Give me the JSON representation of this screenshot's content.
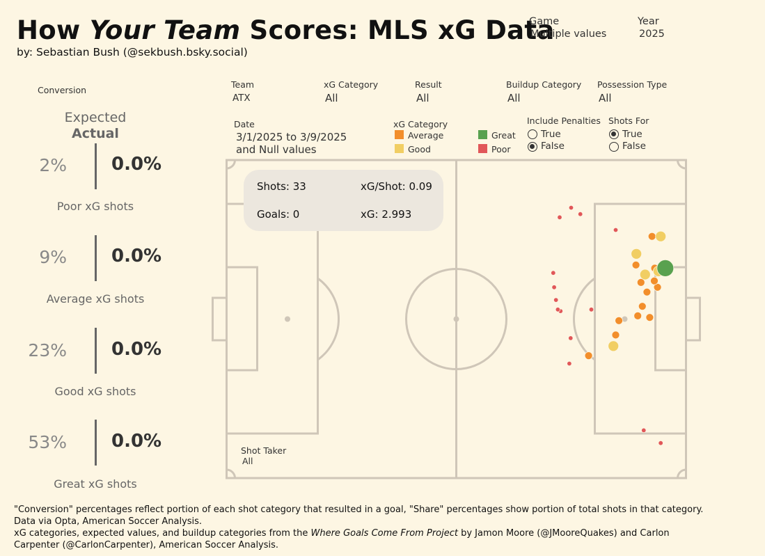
{
  "title": {
    "part1": "How ",
    "part2": "Your Team",
    "part3": "  Scores: MLS xG Data"
  },
  "byline": "by: Sebastian Bush (@sekbush.bsky.social)",
  "top_controls": {
    "game": {
      "label": "Game",
      "value": "Multiple values"
    },
    "year": {
      "label": "Year",
      "value": "2025"
    }
  },
  "left_panel": {
    "conversion_label": "Conversion",
    "expected_label": "Expected",
    "actual_label": "Actual",
    "stats": [
      {
        "expected": "2%",
        "actual": "0.0%",
        "caption": "Poor xG shots"
      },
      {
        "expected": "9%",
        "actual": "0.0%",
        "caption": "Average xG shots"
      },
      {
        "expected": "23%",
        "actual": "0.0%",
        "caption": "Good xG shots"
      },
      {
        "expected": "53%",
        "actual": "0.0%",
        "caption": "Great xG shots"
      }
    ]
  },
  "filters": {
    "team": {
      "label": "Team",
      "value": "ATX"
    },
    "xg_category": {
      "label": "xG Category",
      "value": "All"
    },
    "result": {
      "label": "Result",
      "value": "All"
    },
    "buildup": {
      "label": "Buildup Category",
      "value": "All"
    },
    "possession": {
      "label": "Possession Type",
      "value": "All"
    },
    "date": {
      "label": "Date",
      "line1": "3/1/2025 to 3/9/2025",
      "line2": "and Null values"
    },
    "shot_taker": {
      "label": "Shot Taker",
      "value": "All"
    }
  },
  "legend": {
    "title": "xG Category",
    "items": [
      {
        "name": "Average",
        "color": "#f28e2b"
      },
      {
        "name": "Great",
        "color": "#59a14f"
      },
      {
        "name": "Good",
        "color": "#f1ce63"
      },
      {
        "name": "Poor",
        "color": "#e15759"
      }
    ]
  },
  "include_penalties": {
    "label": "Include Penalties",
    "options": [
      {
        "name": "True",
        "selected": false
      },
      {
        "name": "False",
        "selected": true
      }
    ]
  },
  "shots_for": {
    "label": "Shots For",
    "options": [
      {
        "name": "True",
        "selected": true
      },
      {
        "name": "False",
        "selected": false
      }
    ]
  },
  "summary": {
    "shots": "Shots: 33",
    "xg_per_shot": "xG/Shot: 0.09",
    "goals": "Goals: 0",
    "xg": "xG: 2.993"
  },
  "shot_markers": [
    {
      "cat": "Poor",
      "x": 90.8,
      "y": 85
    },
    {
      "cat": "Poor",
      "x": 94.5,
      "y": 89
    },
    {
      "cat": "Poor",
      "x": 74.6,
      "y": 64
    },
    {
      "cat": "Poor",
      "x": 74.9,
      "y": 56
    },
    {
      "cat": "Poor",
      "x": 72.7,
      "y": 47.5
    },
    {
      "cat": "Poor",
      "x": 72.1,
      "y": 47
    },
    {
      "cat": "Poor",
      "x": 79.4,
      "y": 47
    },
    {
      "cat": "Poor",
      "x": 71.7,
      "y": 44
    },
    {
      "cat": "Poor",
      "x": 71.3,
      "y": 40
    },
    {
      "cat": "Poor",
      "x": 72.5,
      "y": 18
    },
    {
      "cat": "Poor",
      "x": 77,
      "y": 17
    },
    {
      "cat": "Poor",
      "x": 75,
      "y": 15
    },
    {
      "cat": "Poor",
      "x": 84.7,
      "y": 22
    },
    {
      "cat": "Poor",
      "x": 71.1,
      "y": 35.5
    },
    {
      "cat": "Average",
      "x": 78.8,
      "y": 61.5
    },
    {
      "cat": "Average",
      "x": 84.7,
      "y": 55
    },
    {
      "cat": "Average",
      "x": 85.4,
      "y": 50.5
    },
    {
      "cat": "Average",
      "x": 91.5,
      "y": 41.5
    },
    {
      "cat": "Average",
      "x": 92.1,
      "y": 49.5
    },
    {
      "cat": "Average",
      "x": 89.5,
      "y": 49
    },
    {
      "cat": "Average",
      "x": 90.5,
      "y": 46
    },
    {
      "cat": "Average",
      "x": 90.2,
      "y": 38.5
    },
    {
      "cat": "Average",
      "x": 93.8,
      "y": 40
    },
    {
      "cat": "Average",
      "x": 89.1,
      "y": 33
    },
    {
      "cat": "Average",
      "x": 93.1,
      "y": 38
    },
    {
      "cat": "Average",
      "x": 93.2,
      "y": 34
    },
    {
      "cat": "Average",
      "x": 92.6,
      "y": 24
    },
    {
      "cat": "Good",
      "x": 84.2,
      "y": 58.5
    },
    {
      "cat": "Good",
      "x": 91.1,
      "y": 36
    },
    {
      "cat": "Good",
      "x": 94,
      "y": 35
    },
    {
      "cat": "Good",
      "x": 89.2,
      "y": 29.5
    },
    {
      "cat": "Good",
      "x": 94.5,
      "y": 24
    },
    {
      "cat": "Great",
      "x": 95.5,
      "y": 34
    }
  ],
  "footer": {
    "line1": "\"Conversion\" percentages reflect portion of each shot category that resulted in a goal, \"Share\" percentages show portion of total shots in that category.",
    "line2": "Data via Opta, American Soccer Analysis.",
    "line3_a": "xG categories, expected values, and buildup categories from the ",
    "line3_em": "Where Goals Come From Project",
    "line3_b": " by Jamon Moore (@JMooreQuakes) and Carlon",
    "line4": "Carpenter (@CarlonCarpenter), American Soccer Analysis."
  }
}
